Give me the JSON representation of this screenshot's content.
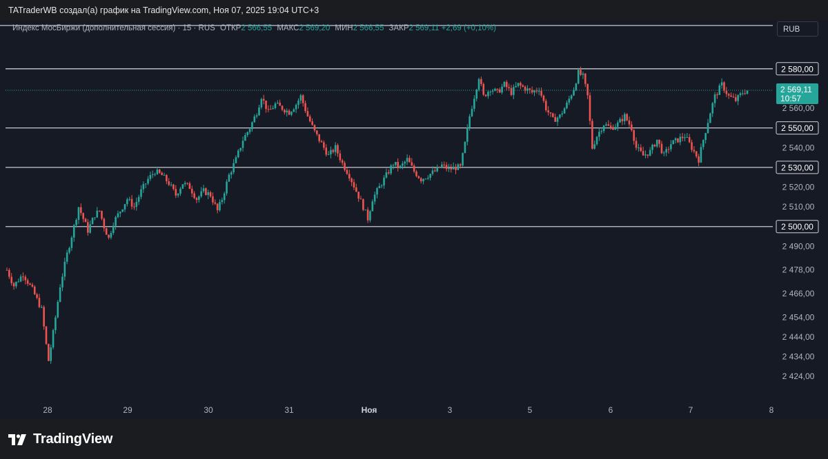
{
  "header": {
    "credit": "TATraderWB создал(а) график на TradingView.com, Ноя 07, 2025 19:04 UTC+3"
  },
  "legend": {
    "symbol": "Индекс МосБиржи (дополнительная сессия) · 15 · RUS",
    "open_label": "ОТКР",
    "open_value": "2 566,55",
    "high_label": "МАКС",
    "high_value": "2 569,20",
    "low_label": "МИН",
    "low_value": "2 566,55",
    "close_label": "ЗАКР",
    "close_value": "2 569,11",
    "change": "+2,69 (+0,10%)"
  },
  "currency_button": "RUB",
  "footer": {
    "brand": "TradingView"
  },
  "colors": {
    "background": "#161a25",
    "up": "#26a69a",
    "down": "#ef5350",
    "level_line": "#c8cbd2",
    "text": "#b2b5be"
  },
  "chart_data": {
    "type": "candlestick",
    "timeframe": "15",
    "ylim": [
      2415,
      2596
    ],
    "x_tick_labels": [
      "28",
      "29",
      "30",
      "31",
      "Ноя",
      "3",
      "5",
      "6",
      "7",
      "8"
    ],
    "y_tick_labels": [
      {
        "value": 2560,
        "label": "2 560,00"
      },
      {
        "value": 2540,
        "label": "2 540,00"
      },
      {
        "value": 2520,
        "label": "2 520,00"
      },
      {
        "value": 2510,
        "label": "2 510,00"
      },
      {
        "value": 2490,
        "label": "2 490,00"
      },
      {
        "value": 2478,
        "label": "2 478,00"
      },
      {
        "value": 2466,
        "label": "2 466,00"
      },
      {
        "value": 2454,
        "label": "2 454,00"
      },
      {
        "value": 2444,
        "label": "2 444,00"
      },
      {
        "value": 2434,
        "label": "2 434,00"
      },
      {
        "value": 2424,
        "label": "2 424,00"
      }
    ],
    "levels": [
      {
        "value": 2580,
        "label": "2 580,00"
      },
      {
        "value": 2550,
        "label": "2 550,00"
      },
      {
        "value": 2530,
        "label": "2 530,00"
      },
      {
        "value": 2500,
        "label": "2 500,00"
      }
    ],
    "current_price": {
      "value": 2569.11,
      "label": "2 569,11",
      "countdown": "10:57"
    },
    "price_path": [
      [
        0,
        2478
      ],
      [
        3,
        2470
      ],
      [
        7,
        2476
      ],
      [
        11,
        2468
      ],
      [
        15,
        2458
      ],
      [
        17,
        2440
      ],
      [
        18,
        2432
      ],
      [
        20,
        2446
      ],
      [
        23,
        2470
      ],
      [
        26,
        2486
      ],
      [
        29,
        2500
      ],
      [
        31,
        2510
      ],
      [
        33,
        2504
      ],
      [
        35,
        2498
      ],
      [
        38,
        2506
      ],
      [
        40,
        2508
      ],
      [
        42,
        2500
      ],
      [
        44,
        2494
      ],
      [
        46,
        2502
      ],
      [
        49,
        2508
      ],
      [
        52,
        2514
      ],
      [
        55,
        2510
      ],
      [
        58,
        2518
      ],
      [
        61,
        2524
      ],
      [
        64,
        2528
      ],
      [
        67,
        2526
      ],
      [
        70,
        2522
      ],
      [
        73,
        2516
      ],
      [
        76,
        2522
      ],
      [
        79,
        2520
      ],
      [
        82,
        2514
      ],
      [
        85,
        2518
      ],
      [
        88,
        2516
      ],
      [
        91,
        2508
      ],
      [
        93,
        2514
      ],
      [
        96,
        2526
      ],
      [
        99,
        2534
      ],
      [
        102,
        2544
      ],
      [
        105,
        2550
      ],
      [
        108,
        2558
      ],
      [
        110,
        2566
      ],
      [
        113,
        2558
      ],
      [
        116,
        2562
      ],
      [
        119,
        2560
      ],
      [
        122,
        2558
      ],
      [
        125,
        2562
      ],
      [
        127,
        2566
      ],
      [
        130,
        2556
      ],
      [
        133,
        2548
      ],
      [
        136,
        2542
      ],
      [
        139,
        2536
      ],
      [
        142,
        2540
      ],
      [
        145,
        2532
      ],
      [
        148,
        2526
      ],
      [
        151,
        2518
      ],
      [
        154,
        2510
      ],
      [
        156,
        2504
      ],
      [
        158,
        2514
      ],
      [
        161,
        2520
      ],
      [
        164,
        2526
      ],
      [
        167,
        2532
      ],
      [
        170,
        2530
      ],
      [
        173,
        2534
      ],
      [
        176,
        2528
      ],
      [
        179,
        2524
      ],
      [
        182,
        2526
      ],
      [
        185,
        2528
      ],
      [
        188,
        2531
      ],
      [
        191,
        2529
      ],
      [
        194,
        2530
      ],
      [
        196,
        2530
      ],
      [
        198,
        2542
      ],
      [
        200,
        2556
      ],
      [
        202,
        2566
      ],
      [
        204,
        2576
      ],
      [
        206,
        2566
      ],
      [
        209,
        2570
      ],
      [
        212,
        2568
      ],
      [
        215,
        2572
      ],
      [
        218,
        2568
      ],
      [
        221,
        2572
      ],
      [
        224,
        2570
      ],
      [
        227,
        2568
      ],
      [
        230,
        2570
      ],
      [
        233,
        2560
      ],
      [
        236,
        2554
      ],
      [
        239,
        2556
      ],
      [
        242,
        2562
      ],
      [
        245,
        2570
      ],
      [
        247,
        2578
      ],
      [
        249,
        2576
      ],
      [
        251,
        2566
      ],
      [
        253,
        2540
      ],
      [
        255,
        2546
      ],
      [
        258,
        2552
      ],
      [
        261,
        2550
      ],
      [
        264,
        2552
      ],
      [
        267,
        2556
      ],
      [
        270,
        2550
      ],
      [
        272,
        2540
      ],
      [
        275,
        2536
      ],
      [
        278,
        2538
      ],
      [
        281,
        2544
      ],
      [
        284,
        2536
      ],
      [
        287,
        2542
      ],
      [
        290,
        2544
      ],
      [
        293,
        2546
      ],
      [
        296,
        2540
      ],
      [
        299,
        2534
      ],
      [
        301,
        2544
      ],
      [
        304,
        2558
      ],
      [
        306,
        2566
      ],
      [
        309,
        2572
      ],
      [
        312,
        2566
      ],
      [
        315,
        2564
      ],
      [
        318,
        2568
      ],
      [
        320,
        2569
      ]
    ]
  }
}
